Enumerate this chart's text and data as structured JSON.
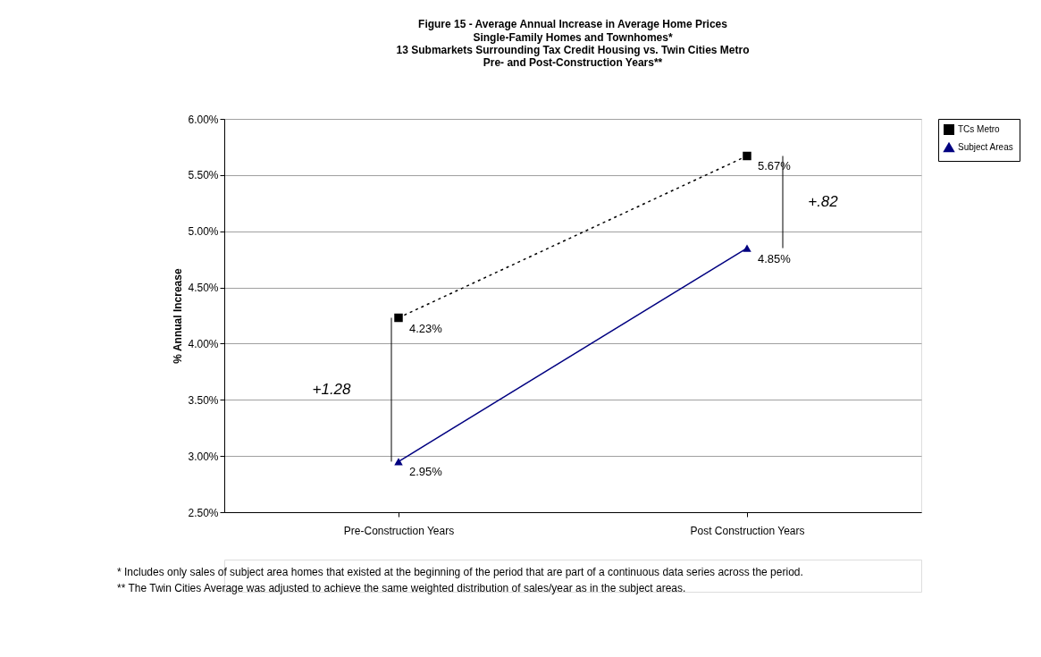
{
  "chart_data": {
    "type": "line",
    "title": "Figure 15 - Average Annual Increase in Average Home Prices",
    "subtitle": [
      "Single-Family Homes and Townhomes*",
      "13 Submarkets Surrounding Tax Credit Housing vs. Twin Cities Metro",
      "Pre- and Post-Construction Years**"
    ],
    "ylabel": "% Annual Increase",
    "categories": [
      "Pre-Construction Years",
      "Post Construction Years"
    ],
    "series": [
      {
        "name": "TCs Metro",
        "color": "#000000",
        "values": [
          4.23,
          5.67
        ],
        "value_labels": [
          "4.23%",
          "5.67%"
        ],
        "line_style": "dotted",
        "marker": "square"
      },
      {
        "name": "Subject Areas",
        "color": "#000080",
        "values": [
          2.95,
          4.85
        ],
        "value_labels": [
          "2.95%",
          "4.85%"
        ],
        "line_style": "solid",
        "marker": "triangle"
      }
    ],
    "ylim": [
      2.5,
      6.0
    ],
    "yticks": [
      {
        "value": 2.5,
        "label": "2.50%"
      },
      {
        "value": 3.0,
        "label": "3.00%"
      },
      {
        "value": 3.5,
        "label": "3.50%"
      },
      {
        "value": 4.0,
        "label": "4.00%"
      },
      {
        "value": 4.5,
        "label": "4.50%"
      },
      {
        "value": 5.0,
        "label": "5.00%"
      },
      {
        "value": 5.5,
        "label": "5.50%"
      },
      {
        "value": 6.0,
        "label": "6.00%"
      }
    ],
    "grid": "y",
    "legend": "right",
    "annotations": [
      "+1.28",
      "+.82",
      "* Includes only sales of subject area homes that existed at the beginning of the period  that are part of a continuous data series across the period.",
      " ** The Twin Cities Average was adjusted to achieve the same weighted distribution of sales/year as in the subject areas."
    ]
  }
}
